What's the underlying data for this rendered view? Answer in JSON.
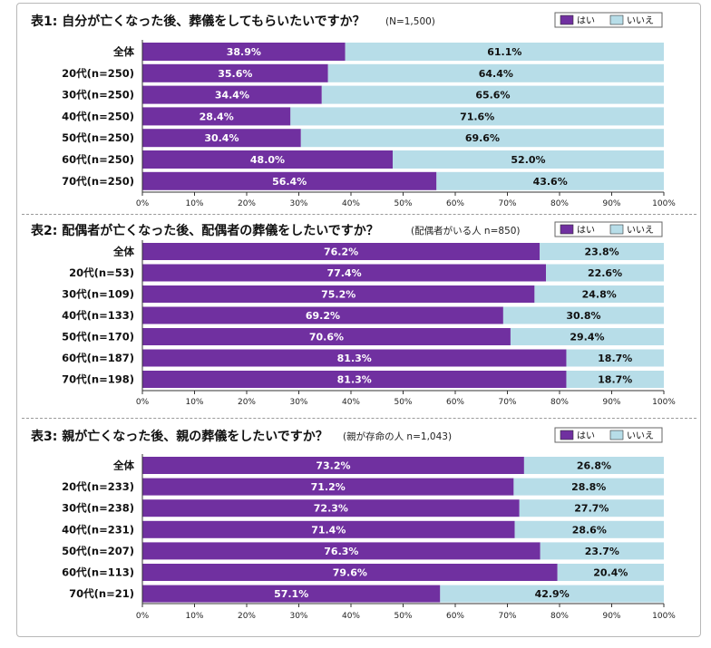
{
  "colors": {
    "yes": "#7030a0",
    "no": "#b7dde8",
    "axis": "#333333"
  },
  "chart_data": [
    {
      "type": "bar",
      "orientation": "horizontal-stacked-100",
      "title": "表1: 自分が亡くなった後、葬儀をしてもらいたいですか？",
      "note": "(N=1,500)",
      "legend": [
        "はい",
        "いいえ"
      ],
      "legend_position": "top-right",
      "xlim": [
        0,
        100
      ],
      "ticks": [
        "0%",
        "10%",
        "20%",
        "30%",
        "40%",
        "50%",
        "60%",
        "70%",
        "80%",
        "90%",
        "100%"
      ],
      "categories": [
        "全体",
        "20代(n=250)",
        "30代(n=250)",
        "40代(n=250)",
        "50代(n=250)",
        "60代(n=250)",
        "70代(n=250)"
      ],
      "series": [
        {
          "name": "はい",
          "values": [
            38.9,
            35.6,
            34.4,
            28.4,
            30.4,
            48.0,
            56.4
          ],
          "labels": [
            "38.9%",
            "35.6%",
            "34.4%",
            "28.4%",
            "30.4%",
            "48.0%",
            "56.4%"
          ]
        },
        {
          "name": "いいえ",
          "values": [
            61.1,
            64.4,
            65.6,
            71.6,
            69.6,
            52.0,
            43.6
          ],
          "labels": [
            "61.1%",
            "64.4%",
            "65.6%",
            "71.6%",
            "69.6%",
            "52.0%",
            "43.6%"
          ]
        }
      ]
    },
    {
      "type": "bar",
      "orientation": "horizontal-stacked-100",
      "title": "表2: 配偶者が亡くなった後、配偶者の葬儀をしたいですか？",
      "note": "(配偶者がいる人 n=850)",
      "legend": [
        "はい",
        "いいえ"
      ],
      "legend_position": "top-right",
      "xlim": [
        0,
        100
      ],
      "ticks": [
        "0%",
        "10%",
        "20%",
        "30%",
        "40%",
        "50%",
        "60%",
        "70%",
        "80%",
        "90%",
        "100%"
      ],
      "categories": [
        "全体",
        "20代(n=53)",
        "30代(n=109)",
        "40代(n=133)",
        "50代(n=170)",
        "60代(n=187)",
        "70代(n=198)"
      ],
      "series": [
        {
          "name": "はい",
          "values": [
            76.2,
            77.4,
            75.2,
            69.2,
            70.6,
            81.3,
            81.3
          ],
          "labels": [
            "76.2%",
            "77.4%",
            "75.2%",
            "69.2%",
            "70.6%",
            "81.3%",
            "81.3%"
          ]
        },
        {
          "name": "いいえ",
          "values": [
            23.8,
            22.6,
            24.8,
            30.8,
            29.4,
            18.7,
            18.7
          ],
          "labels": [
            "23.8%",
            "22.6%",
            "24.8%",
            "30.8%",
            "29.4%",
            "18.7%",
            "18.7%"
          ]
        }
      ]
    },
    {
      "type": "bar",
      "orientation": "horizontal-stacked-100",
      "title": "表3: 親が亡くなった後、親の葬儀をしたいですか？",
      "note": "(親が存命の人 n=1,043)",
      "legend": [
        "はい",
        "いいえ"
      ],
      "legend_position": "top-right",
      "xlim": [
        0,
        100
      ],
      "ticks": [
        "0%",
        "10%",
        "20%",
        "30%",
        "40%",
        "50%",
        "60%",
        "70%",
        "80%",
        "90%",
        "100%"
      ],
      "categories": [
        "全体",
        "20代(n=233)",
        "30代(n=238)",
        "40代(n=231)",
        "50代(n=207)",
        "60代(n=113)",
        "70代(n=21)"
      ],
      "series": [
        {
          "name": "はい",
          "values": [
            73.2,
            71.2,
            72.3,
            71.4,
            76.3,
            79.6,
            57.1
          ],
          "labels": [
            "73.2%",
            "71.2%",
            "72.3%",
            "71.4%",
            "76.3%",
            "79.6%",
            "57.1%"
          ]
        },
        {
          "name": "いいえ",
          "values": [
            26.8,
            28.8,
            27.7,
            28.6,
            23.7,
            20.4,
            42.9
          ],
          "labels": [
            "26.8%",
            "28.8%",
            "27.7%",
            "28.6%",
            "23.7%",
            "20.4%",
            "42.9%"
          ]
        }
      ]
    }
  ]
}
